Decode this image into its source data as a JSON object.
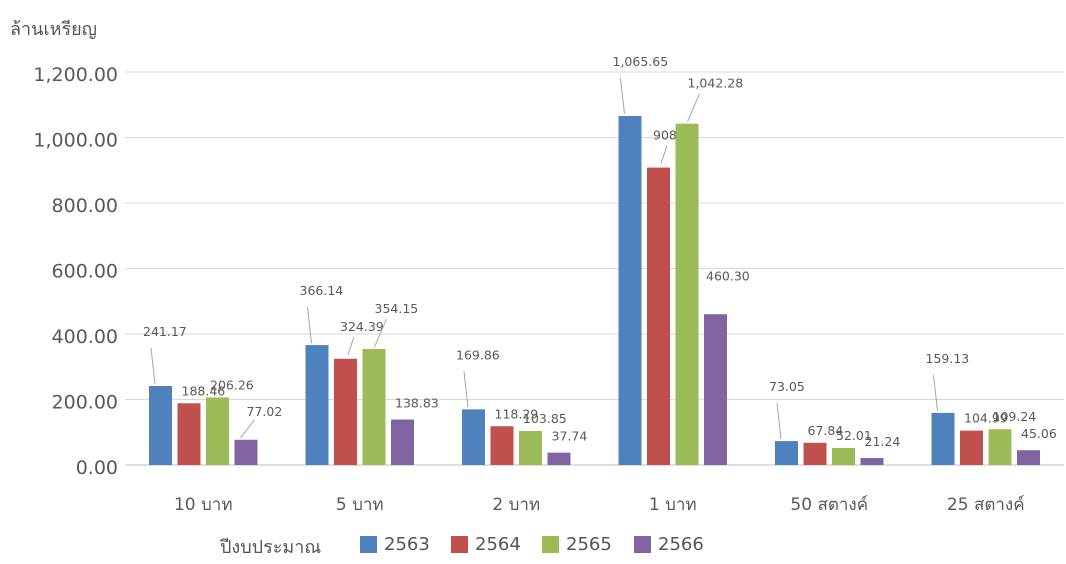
{
  "chart_data": {
    "type": "bar",
    "ylabel": "ล้านเหรียญ",
    "xlabel": "",
    "ylim": [
      0,
      1200
    ],
    "yticks": [
      "0.00",
      "200.00",
      "400.00",
      "600.00",
      "800.00",
      "1,000.00",
      "1,200.00"
    ],
    "grid": true,
    "legend_position": "bottom",
    "legend_title": "ปีงบประมาณ",
    "categories": [
      "10 บาท",
      "5 บาท",
      "2 บาท",
      "1 บาท",
      "50 สตางค์",
      "25 สตางค์"
    ],
    "series": [
      {
        "name": "2563",
        "color": "#4F81BD",
        "values": [
          241.17,
          366.14,
          169.86,
          1065.65,
          73.05,
          159.13
        ],
        "labels": [
          "241.17",
          "366.14",
          "169.86",
          "1,065.65",
          "73.05",
          "159.13"
        ]
      },
      {
        "name": "2564",
        "color": "#C0504D",
        "values": [
          188.46,
          324.39,
          118.29,
          908.13,
          67.84,
          104.99
        ],
        "labels": [
          "188.46",
          "324.39",
          "118.29",
          "908.13",
          "67.84",
          "104.99"
        ]
      },
      {
        "name": "2565",
        "color": "#9BBB59",
        "values": [
          206.26,
          354.15,
          103.85,
          1042.28,
          52.01,
          109.24
        ],
        "labels": [
          "206.26",
          "354.15",
          "103.85",
          "1,042.28",
          "52.01",
          "109.24"
        ]
      },
      {
        "name": "2566",
        "color": "#8064A2",
        "values": [
          77.02,
          138.83,
          37.74,
          460.3,
          21.24,
          45.06
        ],
        "labels": [
          "77.02",
          "138.83",
          "37.74",
          "460.30",
          "21.24",
          "45.06"
        ]
      }
    ]
  }
}
